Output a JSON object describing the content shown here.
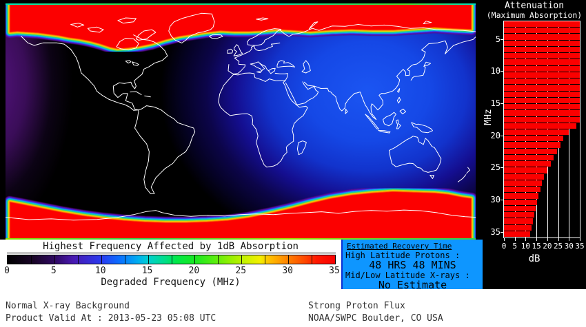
{
  "map_section": {
    "title": "Highest Frequency Affected by 1dB Absorption",
    "colorbar_label": "Degraded Frequency (MHz)",
    "colorbar_ticks": [
      "0",
      "5",
      "10",
      "15",
      "20",
      "25",
      "30",
      "35"
    ],
    "colorbar_range": [
      0,
      35
    ]
  },
  "attenuation_panel": {
    "title_line1": "Attenuation",
    "title_line2": "(Maximum Absorption)",
    "y_axis_label": "MHz",
    "x_axis_label": "dB",
    "y_ticks": [
      "5",
      "10",
      "15",
      "20",
      "25",
      "30",
      "35"
    ],
    "x_ticks": [
      "0",
      "5",
      "10",
      "15",
      "20",
      "25",
      "30",
      "35"
    ]
  },
  "chart_data": {
    "type": "bar",
    "orientation": "horizontal",
    "title": "Attenuation (Maximum Absorption)",
    "xlabel": "dB",
    "ylabel": "MHz",
    "xlim": [
      0,
      35
    ],
    "ylim": [
      2,
      36
    ],
    "grid": true,
    "bar_color": "#fb0000",
    "mhz": [
      2,
      3,
      4,
      5,
      6,
      7,
      8,
      9,
      10,
      11,
      12,
      13,
      14,
      15,
      16,
      17,
      18,
      19,
      20,
      21,
      22,
      23,
      24,
      25,
      26,
      27,
      28,
      29,
      30,
      31,
      32,
      33,
      34,
      35
    ],
    "db": [
      35,
      35,
      35,
      35,
      35,
      35,
      35,
      35,
      35,
      35,
      35,
      35,
      35,
      35,
      35,
      35,
      33.5,
      30,
      27.5,
      26,
      24.5,
      23,
      21.5,
      20,
      18.5,
      17.5,
      17,
      16,
      15.3,
      14.5,
      14,
      13.4,
      12.8,
      12.2
    ]
  },
  "recovery_box": {
    "title": "Estimated Recovery Time",
    "rows": [
      {
        "label": "High Latitude Protons :",
        "value": "48 HRS 48 MINS"
      },
      {
        "label": "Mid/Low Latitude X-rays :",
        "value": "No Estimate"
      }
    ],
    "background": "#0e96ff"
  },
  "status_bar": {
    "xray_status": "Normal X-ray Background",
    "valid_at": "Product Valid At : 2013-05-23 05:08 UTC",
    "proton_status": "Strong Proton Flux",
    "source": "NOAA/SWPC Boulder, CO USA"
  },
  "colors": {
    "polar_cap": "#fc0000",
    "map_background": "#000000",
    "coastline": "#ffffff",
    "daylight_glow": "#1b55f2",
    "recovery_box_bg": "#0e96ff"
  }
}
